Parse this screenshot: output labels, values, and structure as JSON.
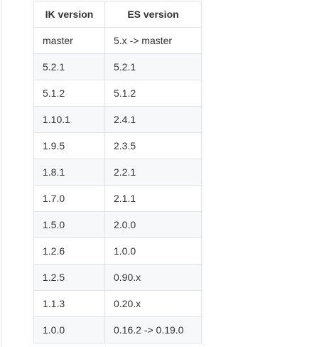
{
  "table": {
    "headers": [
      "IK version",
      "ES version"
    ],
    "rows": [
      [
        "master",
        "5.x -> master"
      ],
      [
        "5.2.1",
        "5.2.1"
      ],
      [
        "5.1.2",
        "5.1.2"
      ],
      [
        "1.10.1",
        "2.4.1"
      ],
      [
        "1.9.5",
        "2.3.5"
      ],
      [
        "1.8.1",
        "2.2.1"
      ],
      [
        "1.7.0",
        "2.1.1"
      ],
      [
        "1.5.0",
        "2.0.0"
      ],
      [
        "1.2.6",
        "1.0.0"
      ],
      [
        "1.2.5",
        "0.90.x"
      ],
      [
        "1.1.3",
        "0.20.x"
      ],
      [
        "1.0.0",
        "0.16.2 -> 0.19.0"
      ]
    ]
  }
}
